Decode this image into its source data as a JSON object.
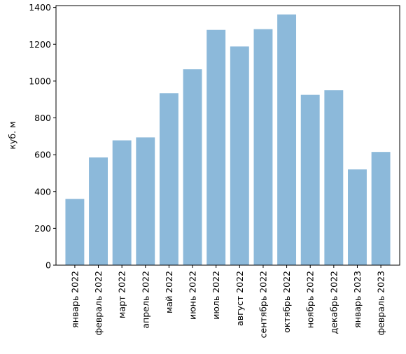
{
  "chart_data": {
    "type": "bar",
    "title": "",
    "xlabel": "",
    "ylabel": "куб. м",
    "ylim": [
      0,
      1410
    ],
    "yticks": [
      0,
      200,
      400,
      600,
      800,
      1000,
      1200,
      1400
    ],
    "grid": false,
    "bar_color": "#8cb9da",
    "categories": [
      "январь 2022",
      "февраль 2022",
      "март 2022",
      "апрель 2022",
      "май 2022",
      "июнь 2022",
      "июль 2022",
      "август 2022",
      "сентябрь 2022",
      "октябрь 2022",
      "ноябрь 2022",
      "декабрь 2022",
      "январь 2023",
      "февраль 2023"
    ],
    "values": [
      360,
      585,
      678,
      694,
      934,
      1064,
      1278,
      1188,
      1282,
      1362,
      925,
      950,
      520,
      615
    ]
  }
}
